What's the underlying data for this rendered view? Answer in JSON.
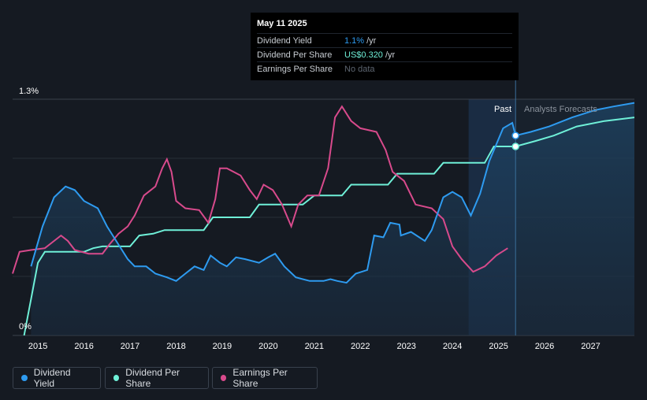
{
  "tooltip": {
    "date": "May 11 2025",
    "rows": [
      {
        "label": "Dividend Yield",
        "value": "1.1%",
        "unit": "/yr"
      },
      {
        "label": "Dividend Per Share",
        "value": "US$0.320",
        "unit": "/yr"
      },
      {
        "label": "Earnings Per Share",
        "value": "No data",
        "unit": ""
      }
    ]
  },
  "legend": {
    "dividend_yield": "Dividend Yield",
    "dividend_per_share": "Dividend Per Share",
    "earnings_per_share": "Earnings Per Share"
  },
  "colors": {
    "background": "#151a22",
    "dividend_yield": "#2e9bf0",
    "dividend_per_share": "#6ff0d8",
    "earnings_per_share": "#d84a8c"
  },
  "chart_data": {
    "type": "line",
    "title": "",
    "y_tick_labels": [
      "1.3%",
      "0%"
    ],
    "ylim": [
      0,
      1.3
    ],
    "xlim": [
      2014.45,
      2027.95
    ],
    "x_ticks": [
      "2015",
      "2016",
      "2017",
      "2018",
      "2019",
      "2020",
      "2021",
      "2022",
      "2023",
      "2024",
      "2025",
      "2026",
      "2027"
    ],
    "grid": true,
    "legend_position": "bottom-left",
    "region_labels": {
      "past": "Past",
      "forecast": "Analysts Forecasts"
    },
    "past_region_start": 2024.35,
    "forecast_start": 2025.37,
    "series": [
      {
        "name": "Dividend Yield",
        "key": "dividend_yield",
        "points": [
          [
            2014.85,
            0.38
          ],
          [
            2015.1,
            0.6
          ],
          [
            2015.35,
            0.76
          ],
          [
            2015.6,
            0.82
          ],
          [
            2015.8,
            0.8
          ],
          [
            2016.0,
            0.74
          ],
          [
            2016.3,
            0.7
          ],
          [
            2016.5,
            0.6
          ],
          [
            2016.75,
            0.5
          ],
          [
            2016.95,
            0.42
          ],
          [
            2017.1,
            0.38
          ],
          [
            2017.35,
            0.38
          ],
          [
            2017.55,
            0.34
          ],
          [
            2017.8,
            0.32
          ],
          [
            2018.0,
            0.3
          ],
          [
            2018.2,
            0.34
          ],
          [
            2018.4,
            0.38
          ],
          [
            2018.6,
            0.36
          ],
          [
            2018.75,
            0.44
          ],
          [
            2018.95,
            0.4
          ],
          [
            2019.1,
            0.38
          ],
          [
            2019.3,
            0.43
          ],
          [
            2019.5,
            0.42
          ],
          [
            2019.8,
            0.4
          ],
          [
            2020.0,
            0.43
          ],
          [
            2020.15,
            0.45
          ],
          [
            2020.35,
            0.38
          ],
          [
            2020.6,
            0.32
          ],
          [
            2020.9,
            0.3
          ],
          [
            2021.2,
            0.3
          ],
          [
            2021.35,
            0.31
          ],
          [
            2021.5,
            0.3
          ],
          [
            2021.7,
            0.29
          ],
          [
            2021.9,
            0.34
          ],
          [
            2022.15,
            0.36
          ],
          [
            2022.3,
            0.55
          ],
          [
            2022.5,
            0.54
          ],
          [
            2022.65,
            0.62
          ],
          [
            2022.85,
            0.61
          ],
          [
            2022.88,
            0.55
          ],
          [
            2023.1,
            0.57
          ],
          [
            2023.4,
            0.52
          ],
          [
            2023.55,
            0.58
          ],
          [
            2023.8,
            0.76
          ],
          [
            2024.0,
            0.79
          ],
          [
            2024.2,
            0.76
          ],
          [
            2024.4,
            0.66
          ],
          [
            2024.6,
            0.78
          ],
          [
            2024.8,
            0.96
          ],
          [
            2025.1,
            1.14
          ],
          [
            2025.3,
            1.17
          ],
          [
            2025.37,
            1.1
          ],
          [
            2025.7,
            1.12
          ],
          [
            2026.1,
            1.15
          ],
          [
            2026.6,
            1.2
          ],
          [
            2027.1,
            1.24
          ],
          [
            2027.5,
            1.26
          ],
          [
            2027.95,
            1.28
          ]
        ]
      },
      {
        "name": "Dividend Per Share",
        "key": "dividend_per_share",
        "points": [
          [
            2014.7,
            0.0
          ],
          [
            2014.85,
            0.2
          ],
          [
            2015.0,
            0.4
          ],
          [
            2015.15,
            0.46
          ],
          [
            2015.3,
            0.46
          ],
          [
            2016.0,
            0.46
          ],
          [
            2016.2,
            0.48
          ],
          [
            2016.4,
            0.49
          ],
          [
            2017.0,
            0.49
          ],
          [
            2017.2,
            0.55
          ],
          [
            2017.5,
            0.56
          ],
          [
            2017.75,
            0.58
          ],
          [
            2018.6,
            0.58
          ],
          [
            2018.8,
            0.65
          ],
          [
            2019.6,
            0.65
          ],
          [
            2019.8,
            0.72
          ],
          [
            2020.75,
            0.72
          ],
          [
            2021.0,
            0.77
          ],
          [
            2021.6,
            0.77
          ],
          [
            2021.8,
            0.83
          ],
          [
            2022.6,
            0.83
          ],
          [
            2022.8,
            0.89
          ],
          [
            2023.6,
            0.89
          ],
          [
            2023.8,
            0.95
          ],
          [
            2024.7,
            0.95
          ],
          [
            2024.9,
            1.04
          ],
          [
            2025.37,
            1.04
          ],
          [
            2025.8,
            1.07
          ],
          [
            2026.2,
            1.1
          ],
          [
            2026.7,
            1.15
          ],
          [
            2027.3,
            1.18
          ],
          [
            2027.95,
            1.2
          ]
        ]
      },
      {
        "name": "Earnings Per Share",
        "key": "earnings_per_share",
        "points": [
          [
            2014.45,
            0.34
          ],
          [
            2014.6,
            0.46
          ],
          [
            2014.85,
            0.47
          ],
          [
            2015.15,
            0.48
          ],
          [
            2015.35,
            0.52
          ],
          [
            2015.5,
            0.55
          ],
          [
            2015.65,
            0.52
          ],
          [
            2015.8,
            0.47
          ],
          [
            2016.1,
            0.45
          ],
          [
            2016.4,
            0.45
          ],
          [
            2016.55,
            0.5
          ],
          [
            2016.75,
            0.56
          ],
          [
            2016.95,
            0.6
          ],
          [
            2017.1,
            0.66
          ],
          [
            2017.3,
            0.77
          ],
          [
            2017.55,
            0.82
          ],
          [
            2017.7,
            0.92
          ],
          [
            2017.8,
            0.97
          ],
          [
            2017.9,
            0.9
          ],
          [
            2018.0,
            0.74
          ],
          [
            2018.2,
            0.7
          ],
          [
            2018.5,
            0.69
          ],
          [
            2018.7,
            0.62
          ],
          [
            2018.85,
            0.75
          ],
          [
            2018.95,
            0.92
          ],
          [
            2019.1,
            0.92
          ],
          [
            2019.4,
            0.88
          ],
          [
            2019.6,
            0.8
          ],
          [
            2019.75,
            0.75
          ],
          [
            2019.9,
            0.83
          ],
          [
            2020.1,
            0.8
          ],
          [
            2020.3,
            0.72
          ],
          [
            2020.5,
            0.6
          ],
          [
            2020.65,
            0.72
          ],
          [
            2020.85,
            0.77
          ],
          [
            2021.1,
            0.77
          ],
          [
            2021.3,
            0.92
          ],
          [
            2021.45,
            1.2
          ],
          [
            2021.6,
            1.26
          ],
          [
            2021.8,
            1.18
          ],
          [
            2022.0,
            1.14
          ],
          [
            2022.35,
            1.12
          ],
          [
            2022.55,
            1.02
          ],
          [
            2022.7,
            0.9
          ],
          [
            2022.95,
            0.85
          ],
          [
            2023.2,
            0.72
          ],
          [
            2023.55,
            0.7
          ],
          [
            2023.8,
            0.64
          ],
          [
            2024.0,
            0.49
          ],
          [
            2024.2,
            0.42
          ],
          [
            2024.45,
            0.35
          ],
          [
            2024.7,
            0.38
          ],
          [
            2024.95,
            0.44
          ],
          [
            2025.2,
            0.48
          ]
        ]
      }
    ],
    "markers": [
      {
        "series": "dividend_yield",
        "x": 2025.37,
        "y": 1.1
      },
      {
        "series": "dividend_per_share",
        "x": 2025.37,
        "y": 1.04
      }
    ]
  }
}
